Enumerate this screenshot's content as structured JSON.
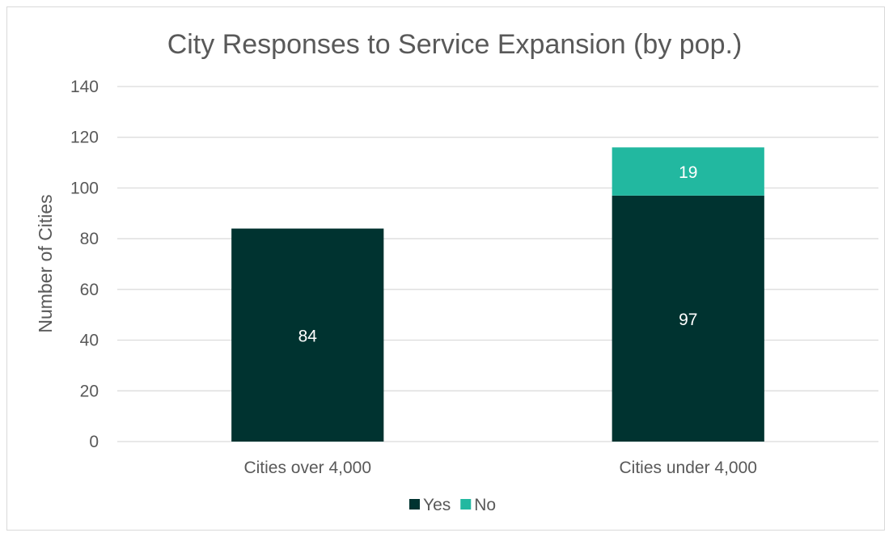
{
  "chart_data": {
    "type": "bar",
    "stacked": true,
    "title": "City Responses to Service Expansion (by pop.)",
    "xlabel": "",
    "ylabel": "Number of Cities",
    "categories": [
      "Cities over 4,000",
      "Cities under 4,000"
    ],
    "series": [
      {
        "name": "Yes",
        "values": [
          84,
          97
        ],
        "color": "#003330"
      },
      {
        "name": "No",
        "values": [
          0,
          19
        ],
        "color": "#22b8a0"
      }
    ],
    "data_labels": [
      [
        "84",
        "97"
      ],
      [
        "",
        "19"
      ]
    ],
    "ylim": [
      0,
      140
    ],
    "yticks": [
      0,
      20,
      40,
      60,
      80,
      100,
      120,
      140
    ],
    "ytick_labels": [
      "0",
      "20",
      "40",
      "60",
      "80",
      "100",
      "120",
      "140"
    ],
    "grid": true,
    "legend_position": "bottom"
  }
}
